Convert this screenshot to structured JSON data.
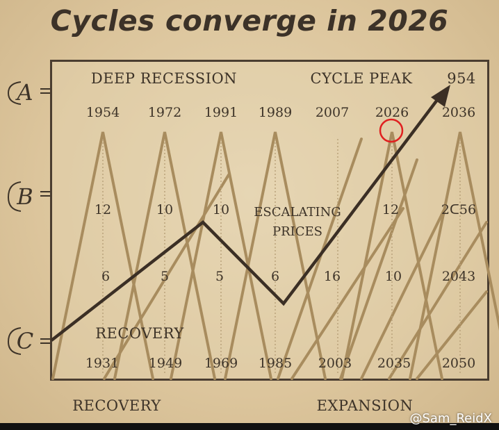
{
  "title": "Cycles converge in 2026",
  "row_labels": [
    "A",
    "B",
    "C"
  ],
  "headers": {
    "left": "DEEP RECESSION",
    "right": "CYCLE PEAK",
    "corner": "954"
  },
  "top_years": [
    "1954",
    "1972",
    "1991",
    "1989",
    "2007",
    "2026",
    "2036"
  ],
  "mid_numbers": [
    "12",
    "10",
    "10",
    "12",
    "2ᑕ56"
  ],
  "center_text": [
    "ESCALATING",
    "PRICES"
  ],
  "low_numbers": [
    "6",
    "5",
    "5",
    "6",
    "16",
    "10",
    "2043"
  ],
  "recovery_inner": "RECOVERY",
  "bottom_years": [
    "1931",
    "1949",
    "1969",
    "1985",
    "2003",
    "2035",
    "2050"
  ],
  "footer": {
    "left": "RECOVERY",
    "right": "EXPANSION"
  },
  "watermark": "@Sam_ReidX",
  "colors": {
    "background": "#ddc9a3",
    "ink": "#3d3328",
    "cycle_lines": "#a88c5e",
    "highlight": "#e02020"
  }
}
